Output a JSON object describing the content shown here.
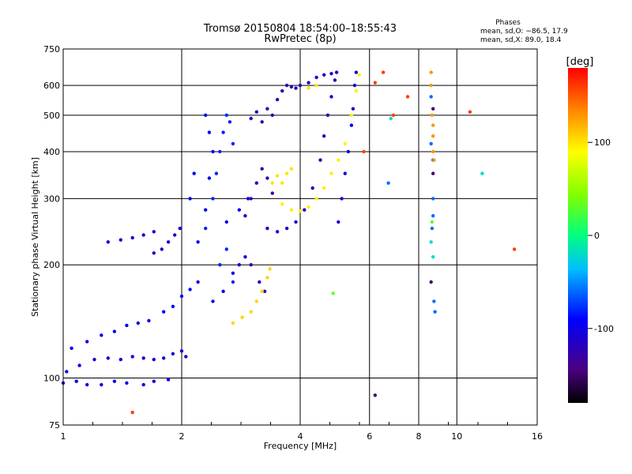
{
  "chart_data": {
    "type": "scatter",
    "title": "Tromsø 20150804 18:54:00–18:55:43",
    "subtitle": "RwPretec (8p)",
    "xlabel": "Frequency [MHz]",
    "ylabel": "Stationary phase Virtual Height [km]",
    "xscale": "log2",
    "yscale": "log",
    "xlim": [
      1,
      16
    ],
    "ylim": [
      75,
      750
    ],
    "xticks": [
      1,
      2,
      4,
      6,
      8,
      10,
      16
    ],
    "yticks": [
      75,
      100,
      200,
      300,
      400,
      500,
      600,
      750
    ],
    "grid": true,
    "legend": {
      "title": "Phases",
      "lines": [
        "mean, sd,O: −86.5, 17.9",
        "mean, sd,X:  89.0, 18.4"
      ]
    },
    "colorbar": {
      "label": "[deg]",
      "range": [
        -180,
        180
      ],
      "ticks": [
        100,
        0,
        -100
      ],
      "colormap": "rainbow"
    },
    "series": [
      {
        "phase": -100,
        "points": [
          [
            1.0,
            97
          ],
          [
            1.08,
            98
          ],
          [
            1.15,
            96
          ],
          [
            1.25,
            96
          ],
          [
            1.35,
            98
          ],
          [
            1.45,
            97
          ],
          [
            1.6,
            96
          ],
          [
            1.7,
            98
          ],
          [
            1.85,
            99
          ]
        ]
      },
      {
        "phase": -105,
        "points": [
          [
            1.02,
            104
          ],
          [
            1.1,
            108
          ],
          [
            1.2,
            112
          ],
          [
            1.3,
            113
          ],
          [
            1.4,
            112
          ],
          [
            1.5,
            114
          ],
          [
            1.6,
            113
          ],
          [
            1.7,
            112
          ],
          [
            1.8,
            113
          ],
          [
            1.9,
            116
          ],
          [
            2.0,
            118
          ],
          [
            2.05,
            114
          ]
        ]
      },
      {
        "phase": -95,
        "points": [
          [
            1.05,
            120
          ],
          [
            1.15,
            125
          ],
          [
            1.25,
            130
          ],
          [
            1.35,
            133
          ],
          [
            1.45,
            138
          ],
          [
            1.55,
            140
          ],
          [
            1.65,
            142
          ],
          [
            1.8,
            150
          ],
          [
            1.9,
            155
          ],
          [
            2.0,
            165
          ],
          [
            2.1,
            172
          ],
          [
            2.2,
            180
          ]
        ]
      },
      {
        "phase": -110,
        "points": [
          [
            1.7,
            215
          ],
          [
            1.78,
            220
          ],
          [
            1.85,
            230
          ],
          [
            1.92,
            240
          ],
          [
            1.98,
            250
          ]
        ]
      },
      {
        "phase": -110,
        "points": [
          [
            1.3,
            230
          ],
          [
            1.4,
            233
          ],
          [
            1.5,
            236
          ],
          [
            1.6,
            240
          ],
          [
            1.7,
            245
          ]
        ]
      },
      {
        "phase": -80,
        "points": [
          [
            2.3,
            250
          ],
          [
            2.4,
            300
          ],
          [
            2.45,
            350
          ],
          [
            2.5,
            400
          ],
          [
            2.55,
            450
          ],
          [
            2.6,
            500
          ],
          [
            2.65,
            480
          ],
          [
            2.7,
            420
          ],
          [
            2.5,
            200
          ],
          [
            2.6,
            220
          ],
          [
            2.7,
            180
          ]
        ]
      },
      {
        "phase": -100,
        "points": [
          [
            2.4,
            160
          ],
          [
            2.55,
            170
          ],
          [
            2.7,
            190
          ],
          [
            2.8,
            200
          ],
          [
            2.9,
            210
          ],
          [
            2.6,
            260
          ],
          [
            2.8,
            280
          ],
          [
            2.95,
            300
          ]
        ]
      },
      {
        "phase": -90,
        "points": [
          [
            2.2,
            230
          ],
          [
            2.3,
            280
          ],
          [
            2.35,
            340
          ],
          [
            2.4,
            400
          ],
          [
            2.35,
            450
          ],
          [
            2.3,
            500
          ],
          [
            2.1,
            300
          ],
          [
            2.15,
            350
          ]
        ]
      },
      {
        "phase": -125,
        "points": [
          [
            2.9,
            270
          ],
          [
            3.0,
            300
          ],
          [
            3.1,
            330
          ],
          [
            3.2,
            360
          ],
          [
            3.3,
            340
          ],
          [
            3.4,
            310
          ],
          [
            3.0,
            200
          ],
          [
            3.15,
            180
          ],
          [
            3.25,
            170
          ]
        ]
      },
      {
        "phase": -120,
        "points": [
          [
            3.0,
            490
          ],
          [
            3.1,
            510
          ],
          [
            3.2,
            480
          ],
          [
            3.3,
            520
          ],
          [
            3.4,
            500
          ],
          [
            3.5,
            550
          ],
          [
            3.6,
            580
          ],
          [
            3.7,
            600
          ],
          [
            3.8,
            595
          ],
          [
            3.9,
            590
          ],
          [
            4.0,
            600
          ]
        ]
      },
      {
        "phase": -115,
        "points": [
          [
            3.3,
            250
          ],
          [
            3.5,
            245
          ],
          [
            3.7,
            250
          ],
          [
            3.9,
            260
          ],
          [
            4.1,
            280
          ],
          [
            4.3,
            320
          ],
          [
            4.5,
            380
          ],
          [
            4.6,
            440
          ],
          [
            4.7,
            500
          ],
          [
            4.8,
            560
          ],
          [
            4.9,
            620
          ],
          [
            4.95,
            650
          ]
        ]
      },
      {
        "phase": -110,
        "points": [
          [
            4.2,
            610
          ],
          [
            4.4,
            630
          ],
          [
            4.6,
            640
          ],
          [
            4.8,
            645
          ]
        ]
      },
      {
        "phase": -105,
        "points": [
          [
            5.0,
            260
          ],
          [
            5.1,
            300
          ],
          [
            5.2,
            350
          ],
          [
            5.3,
            400
          ],
          [
            5.4,
            470
          ],
          [
            5.45,
            520
          ],
          [
            5.5,
            600
          ],
          [
            5.55,
            650
          ]
        ]
      },
      {
        "phase": 95,
        "points": [
          [
            3.6,
            290
          ],
          [
            3.8,
            280
          ],
          [
            4.0,
            278
          ],
          [
            4.2,
            285
          ],
          [
            4.4,
            300
          ],
          [
            4.6,
            320
          ],
          [
            4.8,
            350
          ],
          [
            5.0,
            380
          ],
          [
            5.2,
            420
          ],
          [
            5.4,
            500
          ],
          [
            5.55,
            580
          ],
          [
            5.65,
            640
          ]
        ]
      },
      {
        "phase": 100,
        "points": [
          [
            3.4,
            330
          ],
          [
            3.5,
            345
          ],
          [
            3.6,
            330
          ],
          [
            3.7,
            350
          ],
          [
            3.8,
            360
          ],
          [
            4.2,
            590
          ],
          [
            4.4,
            600
          ]
        ]
      },
      {
        "phase": 105,
        "points": [
          [
            3.0,
            150
          ],
          [
            3.1,
            160
          ],
          [
            3.2,
            170
          ],
          [
            3.3,
            185
          ],
          [
            3.35,
            195
          ],
          [
            2.7,
            140
          ],
          [
            2.85,
            145
          ]
        ]
      },
      {
        "phase": 160,
        "points": [
          [
            5.8,
            400
          ],
          [
            6.2,
            610
          ],
          [
            6.5,
            650
          ],
          [
            6.9,
            500
          ],
          [
            7.5,
            560
          ],
          [
            10.8,
            510
          ],
          [
            14.0,
            220
          ],
          [
            1.5,
            81
          ]
        ]
      },
      {
        "phase": -60,
        "points": [
          [
            6.7,
            330
          ],
          [
            8.6,
            560
          ],
          [
            8.6,
            420
          ],
          [
            8.7,
            380
          ],
          [
            8.7,
            300
          ],
          [
            8.65,
            250
          ],
          [
            8.7,
            270
          ],
          [
            8.75,
            160
          ],
          [
            8.8,
            150
          ]
        ]
      },
      {
        "phase": 130,
        "points": [
          [
            8.6,
            650
          ],
          [
            8.6,
            600
          ],
          [
            8.65,
            500
          ],
          [
            8.7,
            470
          ],
          [
            8.7,
            440
          ],
          [
            8.7,
            400
          ],
          [
            8.75,
            380
          ]
        ]
      },
      {
        "phase": -20,
        "points": [
          [
            6.8,
            490
          ],
          [
            8.6,
            230
          ],
          [
            8.7,
            210
          ],
          [
            11.6,
            350
          ]
        ]
      },
      {
        "phase": 30,
        "points": [
          [
            4.85,
            168
          ],
          [
            8.65,
            260
          ]
        ]
      },
      {
        "phase": -150,
        "points": [
          [
            6.2,
            90
          ],
          [
            8.6,
            180
          ],
          [
            8.7,
            520
          ],
          [
            8.7,
            350
          ]
        ]
      }
    ]
  }
}
